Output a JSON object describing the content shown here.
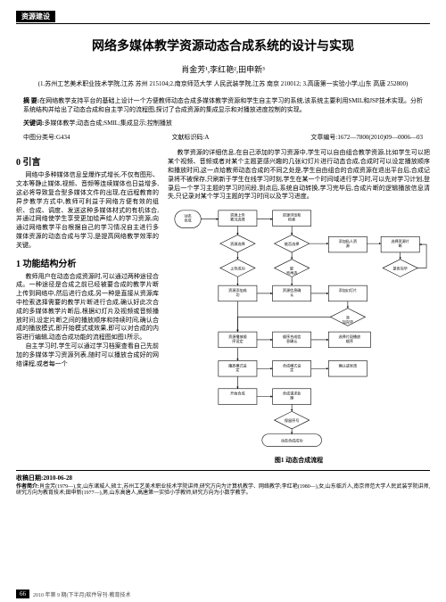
{
  "header": {
    "tag": "资源建设"
  },
  "title": "网络多媒体教学资源动态合成系统的设计与实现",
  "authors": "肖金芳¹,李红艳²,田申新³",
  "affiliation": "(1.苏州工艺美术职业技术学院,江苏 苏州 215104;2.南京师范大学 人民武装学院,江苏 南京 210012;\n3.高唐第一实验小学,山东 高唐 252800)",
  "abstractLabel": "摘 要:",
  "abstract": "在网络教学支持平台的基础上设计一个方便教师动态合成多媒体教学资源和学生自主学习的系统,该系统主要利用SMIL和JSP技术实现。分析系统结构并给出了动态合成和自主学习的流程图,探讨了合成资源的集成显示和对播放进度控制的实现。",
  "keywordsLabel": "关键词:",
  "keywords": "多媒体教学;动态合成;SMIL;集成显示;控制播放",
  "clc": "中图分类号:G434",
  "docCode": "文献标识码:A",
  "articleId": "文章编号:1672—7800(2010)09—0006—03",
  "s0h": "0 引言",
  "s0p": "网络中多种媒体信息呈爆炸式增长,不仅有图形、文本等静止媒体,视频、音频等连续媒体也日益增多,这必将导致复合型多媒体文件的出现,在远程教育的异步教学方式中,教师可利益于网络方便有效的组织、合成、调度、发送这种多媒体材式的有机体合,并通过网络使学生享受更加绘声绘人的学习资源,向通过网络教学平台根据自己的学习情况自主进行多媒体资源的动态合成与学习,是提高网络教学效率的关键。",
  "s1h": "1 功能结构分析",
  "s1p1": "教师用户在动态合成资源时,可以通过两种途径合成。一种途径是合成之前已经被要合成的教学片断上传到网络中,然后进行合成,另一种是直接从资源库中检索选择需要的教学片断进行合成,确认好此次合成的多媒体教学片断后,根据幻灯片及视频或音频播放时间,设定片断之间的播放顺序和持续时间,确认合成的播放模式,即开始模式或效果,即可以对合成的内容进行编辑,动态合成功能的流程图如图1所示。",
  "s1p2": "自主学习时,学生可以通过学习档案查看自己先前加的多媒体学习资源列表,随时可以播放合成好的网络课程,或者每一个",
  "rightP1": "教学资源的详细信息,在自己添加的学习资源中,学生可以自由组合教学资源,比如学生可以把某个视频、音频或者对某个主题更感兴趣的几张幻灯片进行动态合成,合成时可以设定播放顺序和播放时间,这一点给教师动态合成的不同之处是,学生自由组合的合成资源在退出平台后,合成记录将不被保存,只刷新于学生在线学习时刻,学生在某一个时间域进行学习时,可以先对学习计划,登录后一个学习主题的学习时间段,到点后,系统自动转换,学习完毕后,合成片断的逻辑播放信息清失,只记录对某个学习主题的学习时间以及学习进度。",
  "figCaption": "图1 动态合成流程",
  "nodes": {
    "n1": "动态\n合成",
    "n2": "资源上传\n累况选择",
    "n3": "资源浏览和\n检索",
    "n4": "资源选择",
    "n5": "能否选择",
    "n6": "添加私人资\n源",
    "n7": "选择资源片\n断",
    "n8": "上传成功",
    "n9": "能\n否再选",
    "n10": "是否完毕",
    "n11": "资源添加成\n功",
    "n12": "资源信息确\n认",
    "n13": "添加幻灯片",
    "n14": "添\n加完毕",
    "n15": "资源播放顺\n序设定",
    "n16": "顺序合成信\n息确认",
    "n17": "选择片段播放\n顺序",
    "n18": "播放模式设\n定",
    "n19": "合成模式设\n定",
    "n20": "确认或吴改",
    "n21": "开始合成",
    "n22": "合成请求处\n理",
    "n23": "保留序号",
    "n24": "动态合成成功"
  },
  "recvLabel": "收稿日期:",
  "recvDate": "2010-06-28",
  "bioLabel": "作者简介:",
  "bio": "肖金芳(1979—),女,山东诸城人,硕士,苏州工艺美术职业技术学院讲师,研究方向为计算机教学、网络教学;李红艳(1980—),女,山东临沂人,南京师范大学人民武装学院讲师,研究方向为教育技术;田申新(1977—),男,山东高唐人,高唐第一实验小学教师,研究方向为小数学教学。",
  "footer": {
    "pageNum": "66",
    "journal": "2010 年第 9 期(下半月)软件导刊·教育技术"
  }
}
